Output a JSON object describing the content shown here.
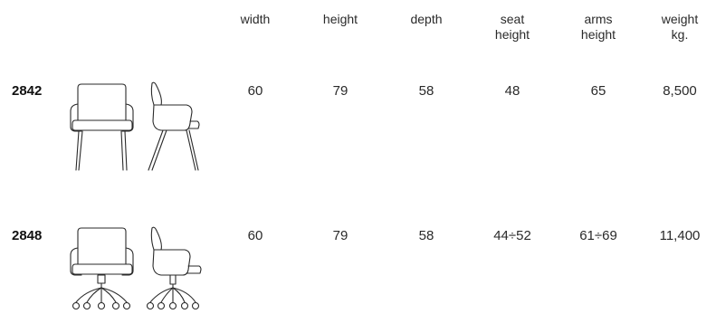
{
  "table": {
    "columns": [
      {
        "line1": "width",
        "line2": ""
      },
      {
        "line1": "height",
        "line2": ""
      },
      {
        "line1": "depth",
        "line2": ""
      },
      {
        "line1": "seat",
        "line2": "height"
      },
      {
        "line1": "arms",
        "line2": "height"
      },
      {
        "line1": "weight",
        "line2": "kg."
      }
    ],
    "rows": [
      {
        "code": "2842",
        "base": "four-leg",
        "values": [
          "60",
          "79",
          "58",
          "48",
          "65",
          "8,500"
        ]
      },
      {
        "code": "2848",
        "base": "swivel-castor",
        "values": [
          "60",
          "79",
          "58",
          "44÷52",
          "61÷69",
          "11,400"
        ]
      }
    ]
  },
  "icons": {
    "row_1_front": "armchair-front-view-icon",
    "row_1_side": "armchair-side-view-icon",
    "row_2_front": "swivel-armchair-front-view-icon",
    "row_2_side": "swivel-armchair-side-view-icon"
  }
}
